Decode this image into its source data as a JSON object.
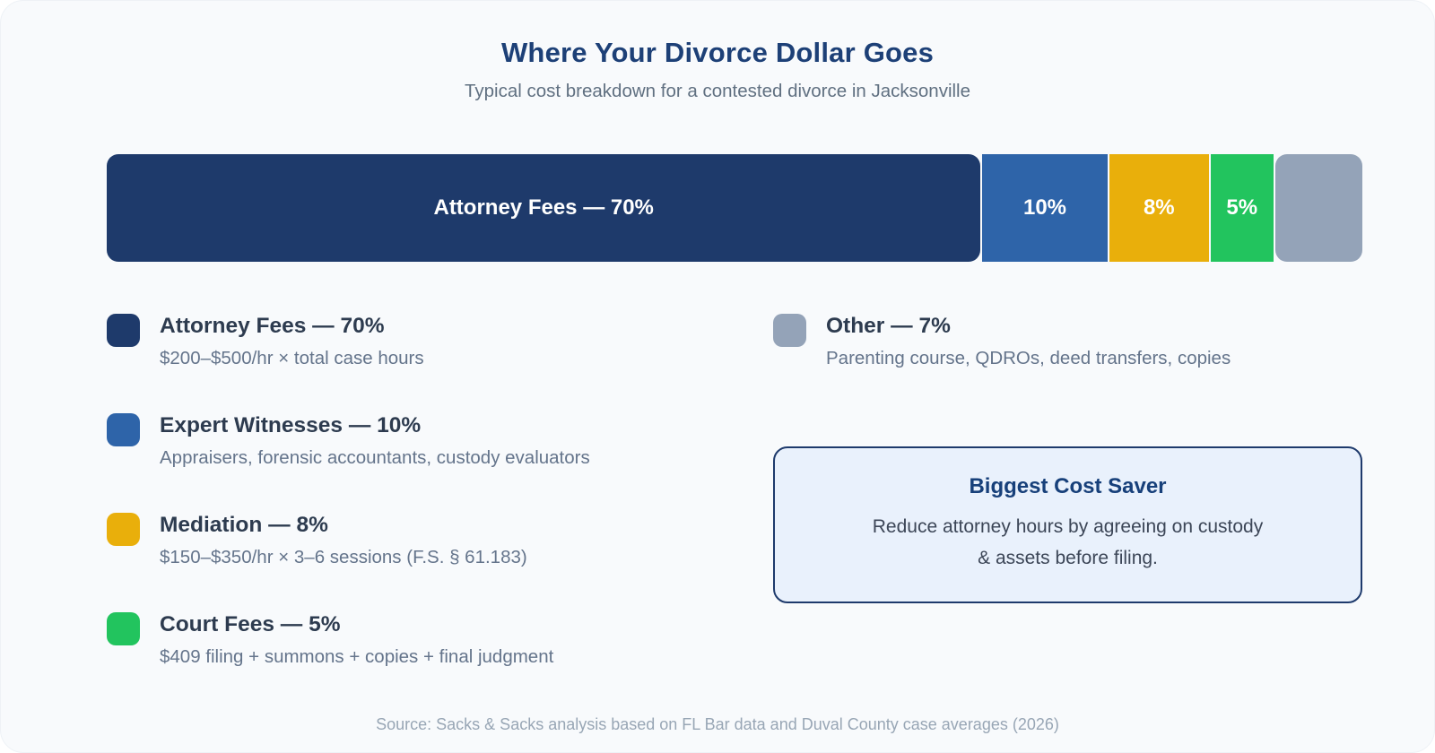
{
  "header": {
    "title": "Where Your Divorce Dollar Goes",
    "subtitle": "Typical cost breakdown for a contested divorce in Jacksonville"
  },
  "chart_data": {
    "type": "bar",
    "variant": "horizontal-stacked-100-percent",
    "title": "Where Your Divorce Dollar Goes",
    "subtitle": "Typical cost breakdown for a contested divorce in Jacksonville",
    "unit": "%",
    "total": 100,
    "legend_position": "below-two-columns",
    "segments": [
      {
        "label": "Attorney Fees",
        "value": 70,
        "bar_label": "Attorney Fees — 70%",
        "legend_label": "Attorney Fees — 70%",
        "description": "$200–$500/hr × total case hours",
        "color": "#1e3a6b"
      },
      {
        "label": "Expert Witnesses",
        "value": 10,
        "bar_label": "10%",
        "legend_label": "Expert Witnesses — 10%",
        "description": "Appraisers, forensic accountants, custody evaluators",
        "color": "#2e64a9"
      },
      {
        "label": "Mediation",
        "value": 8,
        "bar_label": "8%",
        "legend_label": "Mediation — 8%",
        "description": "$150–$350/hr × 3–6 sessions (F.S. § 61.183)",
        "color": "#e9af0b"
      },
      {
        "label": "Court Fees",
        "value": 5,
        "bar_label": "5%",
        "legend_label": "Court Fees — 5%",
        "description": "$409 filing + summons + copies + final judgment",
        "color": "#22c45e"
      },
      {
        "label": "Other",
        "value": 7,
        "bar_label": "",
        "legend_label": "Other — 7%",
        "description": "Parenting course, QDROs, deed transfers, copies",
        "color": "#94a3b8"
      }
    ]
  },
  "legend_layout": {
    "left_column_indices": [
      0,
      1,
      2,
      3
    ],
    "right_column_indices": [
      4
    ]
  },
  "callout": {
    "title": "Biggest Cost Saver",
    "body": "Reduce attorney hours by agreeing on custody & assets before filing."
  },
  "footer": {
    "source": "Source: Sacks & Sacks analysis based on FL Bar data and Duval County case averages (2026)"
  }
}
